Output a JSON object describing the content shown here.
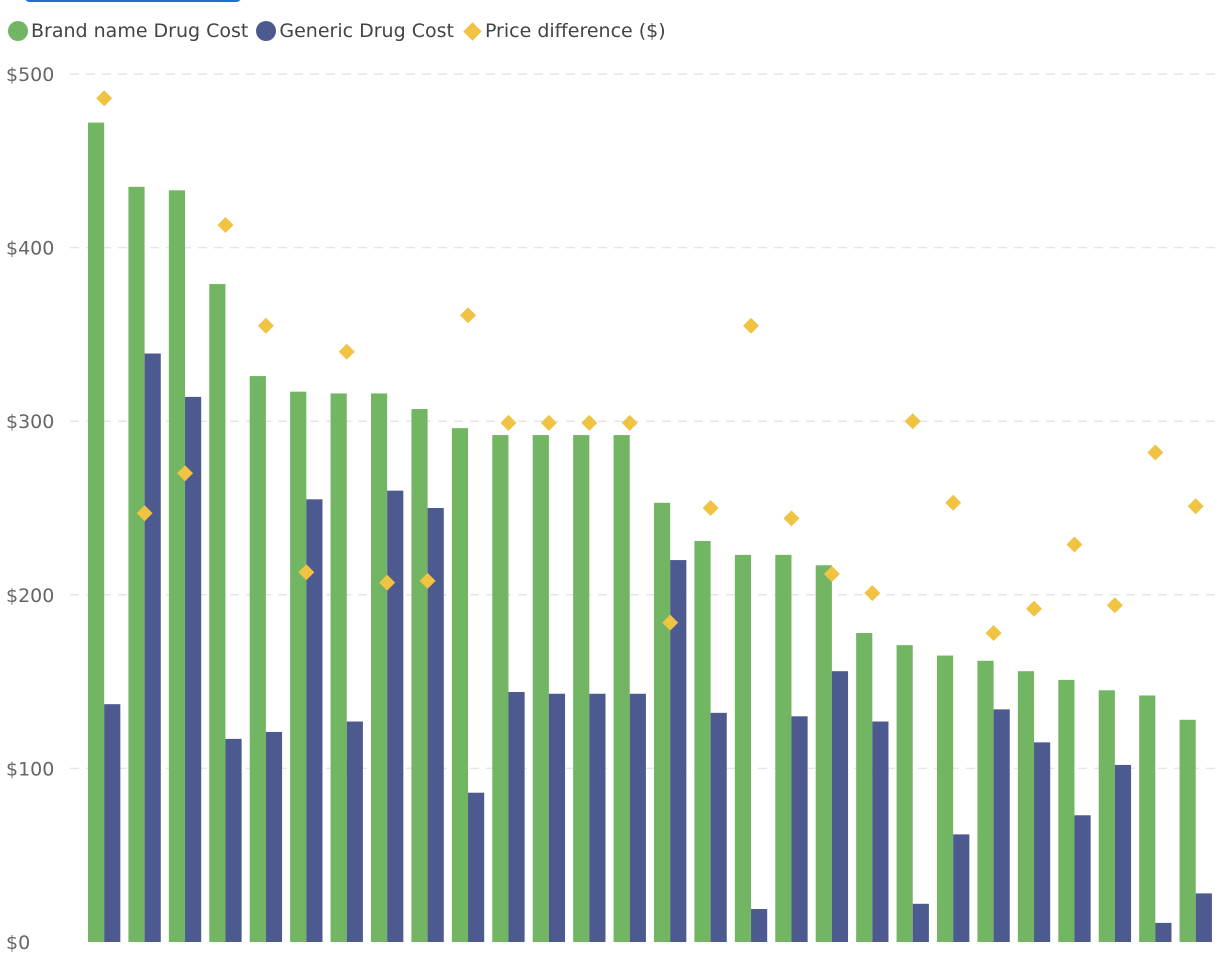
{
  "legend": {
    "brand_label": "Brand name Drug Cost",
    "generic_label": "Generic Drug Cost",
    "diff_label": "Price difference ($)"
  },
  "colors": {
    "brand": "#72b562",
    "generic": "#4c5a8f",
    "diff": "#f0c342",
    "grid": "#e6e6e6",
    "tab_border": "#1f6fd8"
  },
  "chart_data": {
    "type": "bar",
    "title": "",
    "xlabel": "",
    "ylabel": "",
    "ylim": [
      0,
      500
    ],
    "ytick_values": [
      0,
      100,
      200,
      300,
      400,
      500
    ],
    "ytick_labels": [
      "$0",
      "$100",
      "$200",
      "$300",
      "$400",
      "$500"
    ],
    "grid": "horizontal dashed",
    "legend_position": "top-left",
    "series": [
      {
        "name": "Brand name Drug Cost",
        "kind": "bar",
        "values": [
          472,
          435,
          433,
          379,
          326,
          317,
          316,
          316,
          307,
          296,
          292,
          292,
          292,
          292,
          253,
          231,
          223,
          223,
          217,
          178,
          171,
          165,
          162,
          156,
          151,
          145,
          142,
          128
        ]
      },
      {
        "name": "Generic Drug Cost",
        "kind": "bar",
        "values": [
          137,
          339,
          314,
          117,
          121,
          255,
          127,
          260,
          250,
          86,
          144,
          143,
          143,
          143,
          220,
          132,
          19,
          130,
          156,
          127,
          22,
          62,
          134,
          115,
          73,
          102,
          11,
          28
        ]
      },
      {
        "name": "Price difference ($)",
        "kind": "marker",
        "values": [
          486,
          247,
          270,
          413,
          355,
          213,
          340,
          207,
          208,
          361,
          299,
          299,
          299,
          299,
          184,
          250,
          355,
          244,
          212,
          201,
          300,
          253,
          178,
          192,
          229,
          194,
          282,
          251
        ]
      }
    ]
  }
}
